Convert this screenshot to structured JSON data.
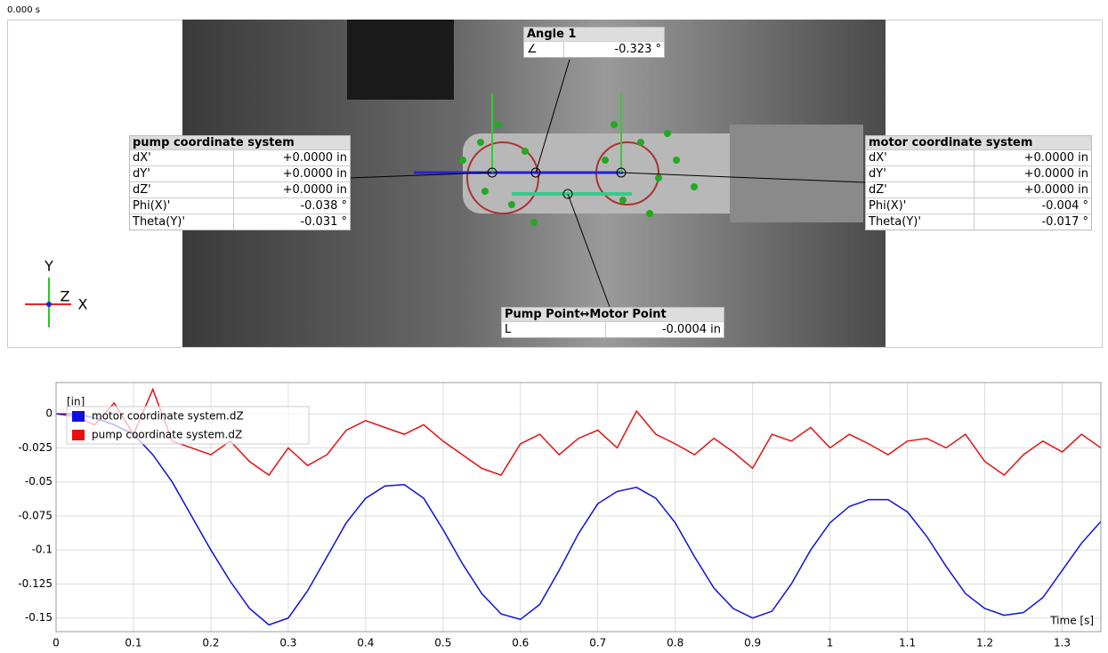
{
  "timestamp": "0.000 s",
  "angle_box": {
    "title": "Angle 1",
    "rows": [
      [
        "∠",
        "-0.323 °"
      ]
    ]
  },
  "pump_box": {
    "title": "pump coordinate system",
    "rows": [
      [
        "dX'",
        "+0.0000 in"
      ],
      [
        "dY'",
        "+0.0000 in"
      ],
      [
        "dZ'",
        "+0.0000 in"
      ],
      [
        "Phi(X)'",
        "-0.038 °"
      ],
      [
        "Theta(Y)'",
        "-0.031 °"
      ]
    ]
  },
  "motor_box": {
    "title": "motor coordinate system",
    "rows": [
      [
        "dX'",
        "+0.0000 in"
      ],
      [
        "dY'",
        "+0.0000 in"
      ],
      [
        "dZ'",
        "+0.0000 in"
      ],
      [
        "Phi(X)'",
        "-0.004 °"
      ],
      [
        "Theta(Y)'",
        "-0.017 °"
      ]
    ]
  },
  "distance_box": {
    "title": "Pump Point↔Motor Point",
    "rows": [
      [
        "L",
        "-0.0004 in"
      ]
    ]
  },
  "axis_triad": {
    "y": "Y",
    "z": "Z",
    "x": "X"
  },
  "chart_data": {
    "type": "line",
    "y_label": "[in]",
    "x_label": "Time [s]",
    "x": [
      0,
      0.025,
      0.05,
      0.075,
      0.1,
      0.125,
      0.15,
      0.175,
      0.2,
      0.225,
      0.25,
      0.275,
      0.3,
      0.325,
      0.35,
      0.375,
      0.4,
      0.425,
      0.45,
      0.475,
      0.5,
      0.525,
      0.55,
      0.575,
      0.6,
      0.625,
      0.65,
      0.675,
      0.7,
      0.725,
      0.75,
      0.775,
      0.8,
      0.825,
      0.85,
      0.875,
      0.9,
      0.925,
      0.95,
      0.975,
      1.0,
      1.025,
      1.05,
      1.075,
      1.1,
      1.125,
      1.15,
      1.175,
      1.2,
      1.225,
      1.25,
      1.275,
      1.3,
      1.325,
      1.35
    ],
    "series": [
      {
        "name": "motor coordinate system.dZ",
        "color": "#1010e0",
        "values": [
          0,
          0,
          -0.003,
          -0.008,
          -0.015,
          -0.03,
          -0.05,
          -0.075,
          -0.1,
          -0.123,
          -0.143,
          -0.155,
          -0.15,
          -0.13,
          -0.105,
          -0.08,
          -0.062,
          -0.053,
          -0.052,
          -0.062,
          -0.085,
          -0.11,
          -0.132,
          -0.147,
          -0.151,
          -0.14,
          -0.115,
          -0.088,
          -0.066,
          -0.057,
          -0.054,
          -0.062,
          -0.08,
          -0.105,
          -0.128,
          -0.143,
          -0.15,
          -0.145,
          -0.125,
          -0.1,
          -0.08,
          -0.068,
          -0.063,
          -0.063,
          -0.072,
          -0.09,
          -0.112,
          -0.132,
          -0.143,
          -0.148,
          -0.146,
          -0.135,
          -0.115,
          -0.095,
          -0.079
        ]
      },
      {
        "name": "pump coordinate system.dZ",
        "color": "#e81010",
        "values": [
          0,
          -0.002,
          -0.008,
          0.008,
          -0.015,
          0.018,
          -0.02,
          -0.025,
          -0.03,
          -0.02,
          -0.035,
          -0.045,
          -0.025,
          -0.038,
          -0.03,
          -0.012,
          -0.005,
          -0.01,
          -0.015,
          -0.008,
          -0.02,
          -0.03,
          -0.04,
          -0.045,
          -0.022,
          -0.015,
          -0.03,
          -0.018,
          -0.012,
          -0.025,
          0.002,
          -0.015,
          -0.022,
          -0.03,
          -0.018,
          -0.028,
          -0.04,
          -0.015,
          -0.02,
          -0.01,
          -0.025,
          -0.015,
          -0.022,
          -0.03,
          -0.02,
          -0.018,
          -0.025,
          -0.015,
          -0.035,
          -0.045,
          -0.03,
          -0.02,
          -0.028,
          -0.015,
          -0.025
        ]
      }
    ],
    "xlim": [
      0,
      1.35
    ],
    "ylim": [
      -0.16,
      0.023
    ],
    "xticks": [
      0,
      0.1,
      0.2,
      0.3,
      0.4,
      0.5,
      0.6,
      0.7,
      0.8,
      0.9,
      1,
      1.1,
      1.2,
      1.3
    ],
    "yticks": [
      0,
      -0.025,
      -0.05,
      -0.075,
      -0.1,
      -0.125,
      -0.15
    ],
    "grid": true,
    "legend": "upper-left"
  }
}
